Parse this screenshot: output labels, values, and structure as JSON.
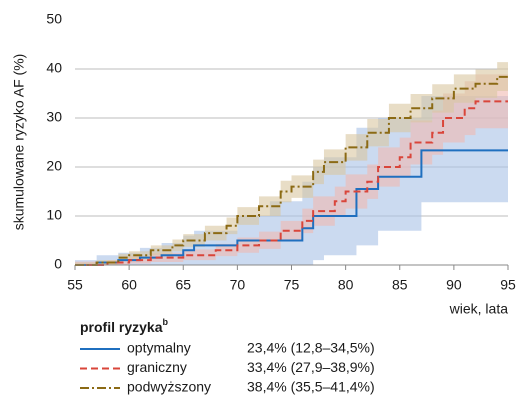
{
  "chart_data": {
    "type": "step",
    "ylabel": "skumulowane ryzyko AF (%)",
    "xlabel": "wiek, lata",
    "xlim": [
      55,
      95
    ],
    "xticks": [
      55,
      60,
      65,
      70,
      75,
      80,
      85,
      90,
      95
    ],
    "ylim": [
      0,
      50
    ],
    "yticks": [
      0,
      10,
      20,
      30,
      40,
      50
    ],
    "grid": true,
    "legend_title": "profil ryzyka",
    "legend_title_sup": "b",
    "series": [
      {
        "name": "optymalny",
        "summary": "23,4% (12,8–34,5%)",
        "color": "#1f6fbf",
        "band_color": "#a9c2e6",
        "dash": "solid",
        "x": [
          55,
          57,
          59,
          61,
          63,
          65,
          66,
          70,
          73,
          76,
          77,
          78,
          81,
          83,
          87,
          95
        ],
        "values": [
          0,
          0.5,
          1,
          1.5,
          2,
          3,
          4,
          5,
          5,
          7.5,
          10,
          10,
          15.5,
          18,
          23.4,
          23.4
        ],
        "lower": [
          0,
          0,
          0,
          0,
          0,
          0,
          0,
          0,
          0,
          0,
          1,
          2,
          4,
          7,
          12.8,
          12.8
        ],
        "upper": [
          1,
          2,
          2.5,
          3.5,
          4.5,
          6,
          7,
          10,
          13,
          17,
          20,
          22,
          28,
          30,
          34.5,
          34.5
        ]
      },
      {
        "name": "graniczny",
        "summary": "33,4% (27,9–38,9%)",
        "color": "#d9453a",
        "band_color": "#f0b9b0",
        "dash": "dashed",
        "x": [
          55,
          58,
          60,
          62,
          65,
          68,
          70,
          72,
          74,
          76,
          77,
          79,
          80,
          82,
          83,
          85,
          86,
          88,
          89,
          91,
          92,
          95
        ],
        "values": [
          0,
          0.5,
          1,
          1.5,
          2,
          3,
          4,
          5,
          7,
          9,
          11,
          13,
          15,
          17,
          20,
          22,
          25,
          27,
          30,
          32,
          33.4,
          33.4
        ],
        "lower": [
          0,
          0,
          0.3,
          0.6,
          1,
          1.8,
          2.5,
          3.3,
          5,
          6.5,
          8,
          10,
          11.5,
          13.5,
          16,
          18,
          20.5,
          22.5,
          25,
          26.5,
          27.9,
          27.9
        ],
        "upper": [
          0.7,
          1,
          1.8,
          2.5,
          3.2,
          4.3,
          5.6,
          6.8,
          9,
          11.5,
          14,
          16,
          18.5,
          20.5,
          24,
          26,
          29.5,
          31.5,
          35,
          37.5,
          38.9,
          38.9
        ]
      },
      {
        "name": "podwyższony",
        "summary": "38,4% (35,5–41,4%)",
        "color": "#8b6a14",
        "band_color": "#d8c7a0",
        "dash": "dashdot",
        "x": [
          55,
          57,
          59,
          60,
          62,
          64,
          65,
          67,
          69,
          70,
          72,
          74,
          75,
          77,
          78,
          80,
          82,
          84,
          86,
          88,
          90,
          92,
          94,
          95
        ],
        "values": [
          0,
          0.5,
          1.5,
          2,
          3,
          4,
          5,
          6.5,
          8,
          10,
          12,
          15,
          16,
          19,
          21,
          24,
          27,
          30,
          32,
          34,
          36,
          37,
          38.4,
          38.4
        ],
        "lower": [
          0,
          0,
          0.8,
          1.2,
          2,
          2.8,
          3.7,
          5,
          6.3,
          8.2,
          10,
          12.8,
          13.7,
          16.5,
          18.4,
          21.3,
          24.2,
          27.1,
          29.1,
          31.1,
          33.1,
          34.1,
          35.5,
          35.5
        ],
        "upper": [
          0.5,
          1,
          2.3,
          2.8,
          4,
          5.2,
          6.3,
          8,
          9.7,
          11.8,
          14,
          17.2,
          18.3,
          21.5,
          23.6,
          26.7,
          29.8,
          32.9,
          34.9,
          36.9,
          38.9,
          39.9,
          41.4,
          41.4
        ]
      }
    ]
  }
}
